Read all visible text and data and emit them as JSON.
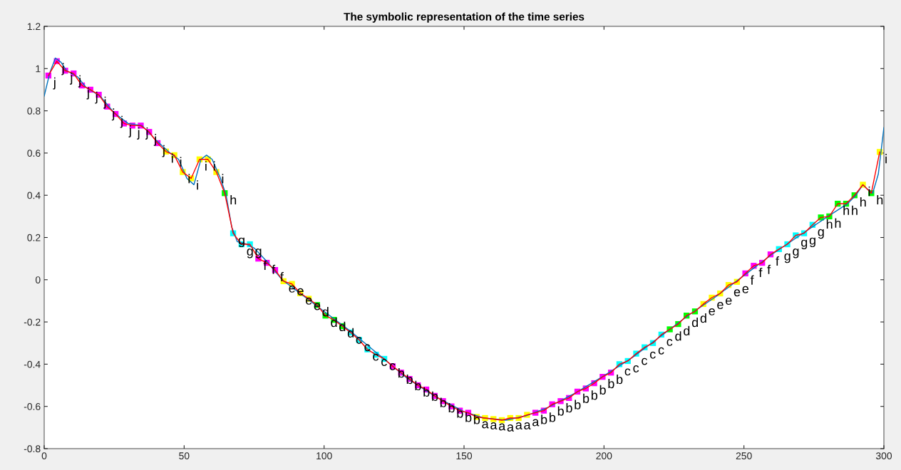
{
  "chart_data": {
    "type": "line",
    "title": "The symbolic representation of the time series",
    "xlim": [
      0,
      300
    ],
    "xticks": [
      0,
      50,
      100,
      150,
      200,
      250,
      300
    ],
    "ylim": [
      -0.8,
      1.2
    ],
    "yticks": [
      -0.8,
      -0.6,
      -0.4,
      -0.2,
      0,
      0.2,
      0.4,
      0.6,
      0.8,
      1,
      1.2
    ],
    "grid": false,
    "series": [
      {
        "color": "#0072bd",
        "marker": "none",
        "line_style": "solid",
        "x": [
          0,
          2,
          4,
          6,
          8,
          12,
          15,
          20,
          25,
          30,
          35,
          40,
          45,
          48,
          51,
          53.5,
          56,
          58,
          60,
          63,
          65,
          67,
          69,
          72,
          75,
          80,
          85,
          90,
          100,
          110,
          120,
          130,
          140,
          150,
          157,
          165,
          172,
          180,
          190,
          200,
          210,
          220,
          230,
          240,
          250,
          260,
          270,
          280,
          287,
          290,
          292.5,
          294,
          296,
          298,
          300
        ],
        "values": [
          0.87,
          0.98,
          1.05,
          1.03,
          0.99,
          0.96,
          0.91,
          0.87,
          0.79,
          0.74,
          0.73,
          0.66,
          0.6,
          0.57,
          0.48,
          0.45,
          0.57,
          0.59,
          0.57,
          0.48,
          0.4,
          0.25,
          0.18,
          0.17,
          0.15,
          0.08,
          0.0,
          -0.05,
          -0.15,
          -0.25,
          -0.36,
          -0.47,
          -0.555,
          -0.625,
          -0.655,
          -0.665,
          -0.645,
          -0.605,
          -0.535,
          -0.455,
          -0.37,
          -0.27,
          -0.17,
          -0.08,
          0.02,
          0.12,
          0.21,
          0.3,
          0.36,
          0.4,
          0.45,
          0.43,
          0.41,
          0.5,
          0.72
        ]
      },
      {
        "color": "#ff0000",
        "line_style": "solid",
        "marker": "square",
        "x": [
          1.5,
          4.5,
          7.5,
          10.5,
          13.5,
          16.5,
          19.5,
          22.5,
          25.5,
          28.5,
          31.5,
          34.5,
          37.5,
          40.5,
          43.5,
          46.5,
          49.5,
          52.5,
          55.5,
          58.5,
          61.5,
          64.5,
          67.5,
          70.5,
          73.5,
          76.5,
          79.5,
          82.5,
          85.5,
          88.5,
          91.5,
          94.5,
          97.5,
          100.5,
          103.5,
          106.5,
          109.5,
          112.5,
          115.5,
          118.5,
          121.5,
          124.5,
          127.5,
          130.5,
          133.5,
          136.5,
          139.5,
          142.5,
          145.5,
          148.5,
          151.5,
          154.5,
          157.5,
          160.5,
          163.5,
          166.5,
          169.5,
          172.5,
          175.5,
          178.5,
          181.5,
          184.5,
          187.5,
          190.5,
          193.5,
          196.5,
          199.5,
          202.5,
          205.5,
          208.5,
          211.5,
          214.5,
          217.5,
          220.5,
          223.5,
          226.5,
          229.5,
          232.5,
          235.5,
          238.5,
          241.5,
          244.5,
          247.5,
          250.5,
          253.5,
          256.5,
          259.5,
          262.5,
          265.5,
          268.5,
          271.5,
          274.5,
          277.5,
          280.5,
          283.5,
          286.5,
          289.5,
          292.5,
          295.5,
          298.5
        ],
        "values": [
          0.967,
          1.035,
          0.99,
          0.977,
          0.92,
          0.9,
          0.876,
          0.82,
          0.785,
          0.74,
          0.73,
          0.73,
          0.7,
          0.647,
          0.607,
          0.59,
          0.51,
          0.48,
          0.57,
          0.57,
          0.51,
          0.41,
          0.22,
          0.168,
          0.168,
          0.1,
          0.08,
          0.046,
          -0.007,
          -0.02,
          -0.064,
          -0.09,
          -0.12,
          -0.17,
          -0.19,
          -0.22,
          -0.25,
          -0.285,
          -0.33,
          -0.355,
          -0.375,
          -0.41,
          -0.44,
          -0.47,
          -0.5,
          -0.52,
          -0.55,
          -0.575,
          -0.6,
          -0.62,
          -0.63,
          -0.65,
          -0.655,
          -0.66,
          -0.665,
          -0.655,
          -0.655,
          -0.64,
          -0.63,
          -0.62,
          -0.59,
          -0.575,
          -0.56,
          -0.53,
          -0.515,
          -0.49,
          -0.46,
          -0.44,
          -0.4,
          -0.385,
          -0.35,
          -0.32,
          -0.3,
          -0.26,
          -0.235,
          -0.21,
          -0.17,
          -0.15,
          -0.115,
          -0.085,
          -0.065,
          -0.025,
          -0.01,
          0.03,
          0.066,
          0.08,
          0.12,
          0.145,
          0.168,
          0.21,
          0.22,
          0.26,
          0.295,
          0.3,
          0.36,
          0.36,
          0.4,
          0.45,
          0.41,
          0.605
        ],
        "value_labels": [
          "j",
          "j",
          "j",
          "j",
          "j",
          "j",
          "j",
          "j",
          "j",
          "j",
          "j",
          "j",
          "j",
          "j",
          "i",
          "i",
          "i",
          "i",
          "i",
          "i",
          "i",
          "h",
          "g",
          "g",
          "g",
          "f",
          "f",
          "f",
          "e",
          "e",
          "e",
          "e",
          "d",
          "d",
          "d",
          "d",
          "c",
          "c",
          "c",
          "c",
          "c",
          "b",
          "b",
          "b",
          "b",
          "b",
          "b",
          "b",
          "b",
          "b",
          "b",
          "a",
          "a",
          "a",
          "a",
          "a",
          "a",
          "a",
          "b",
          "b",
          "b",
          "b",
          "b",
          "b",
          "b",
          "b",
          "b",
          "b",
          "c",
          "c",
          "c",
          "c",
          "c",
          "c",
          "d",
          "d",
          "d",
          "d",
          "e",
          "e",
          "e",
          "e",
          "e",
          "f",
          "f",
          "f",
          "f",
          "g",
          "g",
          "g",
          "g",
          "g",
          "h",
          "h",
          "h",
          "h",
          "h",
          "i",
          "h",
          "i"
        ],
        "colors": [
          "#ff00ff",
          "#ff00ff",
          "#ff00ff",
          "#ff00ff",
          "#ff00ff",
          "#ff00ff",
          "#ff00ff",
          "#ff00ff",
          "#ff00ff",
          "#ff00ff",
          "#ff00ff",
          "#ff00ff",
          "#ff00ff",
          "#ff00ff",
          "#ffff00",
          "#ffff00",
          "#ffff00",
          "#ffff00",
          "#ffff00",
          "#ffff00",
          "#ffff00",
          "#00ff00",
          "#00ffff",
          "#00ffff",
          "#00ffff",
          "#ff00ff",
          "#ff00ff",
          "#ff00ff",
          "#ffff00",
          "#ffff00",
          "#ffff00",
          "#ffff00",
          "#00ff00",
          "#00ff00",
          "#00ff00",
          "#00ff00",
          "#00ffff",
          "#00ffff",
          "#00ffff",
          "#00ffff",
          "#00ffff",
          "#ff00ff",
          "#ff00ff",
          "#ff00ff",
          "#ff00ff",
          "#ff00ff",
          "#ff00ff",
          "#ff00ff",
          "#ff00ff",
          "#ff00ff",
          "#ff00ff",
          "#ffff00",
          "#ffff00",
          "#ffff00",
          "#ffff00",
          "#ffff00",
          "#ffff00",
          "#ffff00",
          "#ff00ff",
          "#ff00ff",
          "#ff00ff",
          "#ff00ff",
          "#ff00ff",
          "#ff00ff",
          "#ff00ff",
          "#ff00ff",
          "#ff00ff",
          "#ff00ff",
          "#00ffff",
          "#00ffff",
          "#00ffff",
          "#00ffff",
          "#00ffff",
          "#00ffff",
          "#00ff00",
          "#00ff00",
          "#00ff00",
          "#00ff00",
          "#ffff00",
          "#ffff00",
          "#ffff00",
          "#ffff00",
          "#ffff00",
          "#ff00ff",
          "#ff00ff",
          "#ff00ff",
          "#ff00ff",
          "#00ffff",
          "#00ffff",
          "#00ffff",
          "#00ffff",
          "#00ffff",
          "#00ff00",
          "#00ff00",
          "#00ff00",
          "#00ff00",
          "#00ff00",
          "#ffff00",
          "#00ff00",
          "#ffff00"
        ]
      }
    ]
  }
}
